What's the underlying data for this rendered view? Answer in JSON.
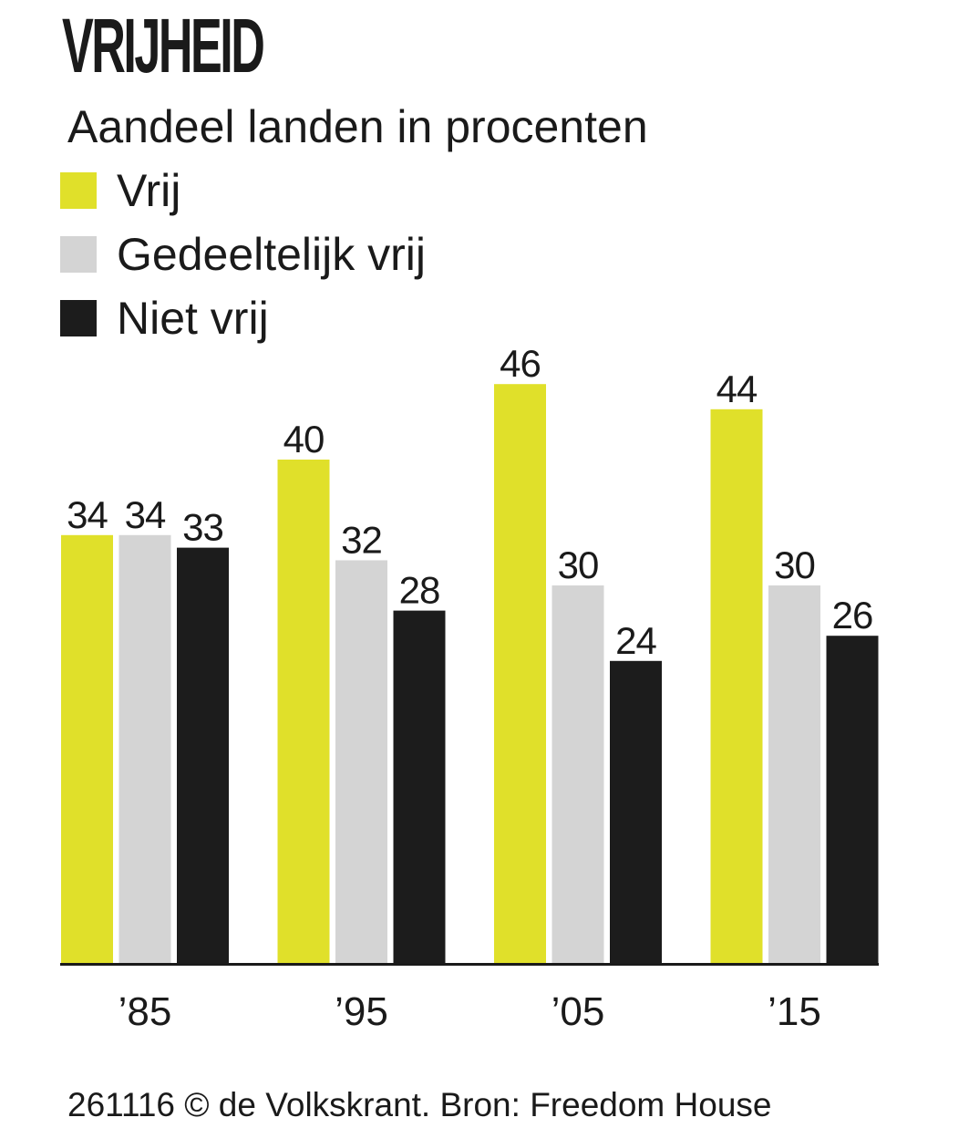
{
  "title": "VRIJHEID",
  "subtitle": "Aandeel landen in procenten",
  "footer": "261116 © de Volkskrant. Bron: Freedom House",
  "legend": [
    {
      "label": "Vrij",
      "color": "#e0e02a"
    },
    {
      "label": "Gedeeltelijk vrij",
      "color": "#d4d4d4"
    },
    {
      "label": "Niet vrij",
      "color": "#1c1c1c"
    }
  ],
  "chart_data": {
    "type": "bar",
    "categories": [
      "’85",
      "’95",
      "’05",
      "’15"
    ],
    "series": [
      {
        "name": "Vrij",
        "color": "#e0e02a",
        "values": [
          34,
          40,
          46,
          44
        ]
      },
      {
        "name": "Gedeeltelijk vrij",
        "color": "#d4d4d4",
        "values": [
          34,
          32,
          30,
          30
        ]
      },
      {
        "name": "Niet vrij",
        "color": "#1c1c1c",
        "values": [
          33,
          28,
          24,
          26
        ]
      }
    ],
    "title": "VRIJHEID",
    "subtitle": "Aandeel landen in procenten",
    "xlabel": "",
    "ylabel": "",
    "ylim": [
      0,
      46
    ],
    "grid": false,
    "legend_position": "top-left"
  }
}
